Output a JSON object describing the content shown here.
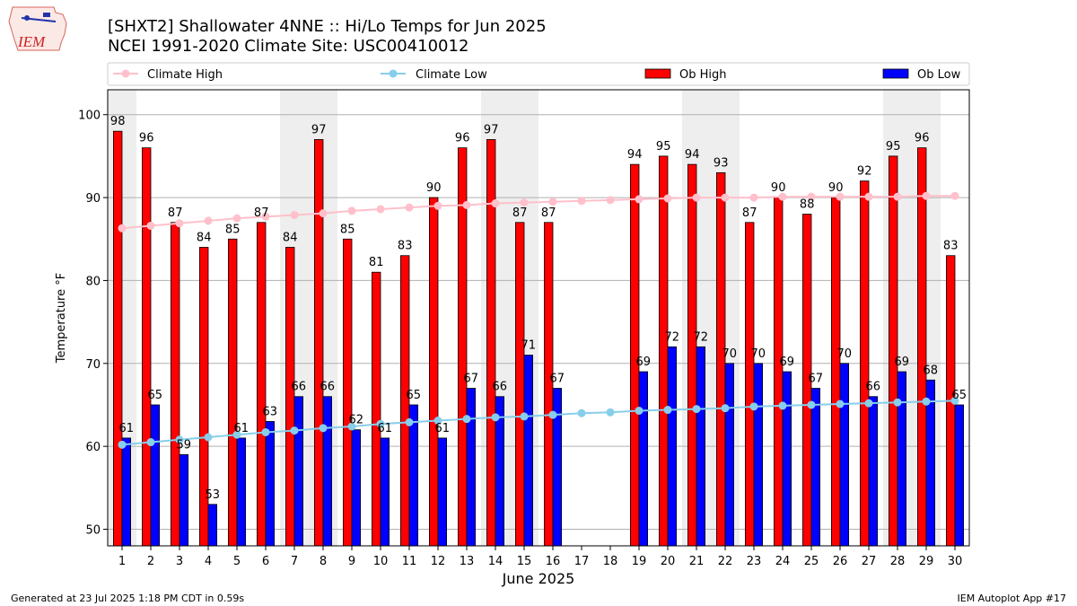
{
  "logo": {
    "text": "IEM"
  },
  "header": {
    "title_line1": "[SHXT2] Shallowater 4NNE :: Hi/Lo Temps for Jun 2025",
    "title_line2": "NCEI 1991-2020 Climate Site: USC00410012"
  },
  "footer": {
    "left": "Generated at 23 Jul 2025 1:18 PM CDT in 0.59s",
    "right": "IEM Autoplot App #17"
  },
  "colors": {
    "ob_high": "#ff0000",
    "ob_low": "#0000ff",
    "climate_high": "#ffc0cb",
    "climate_low": "#87ceeb",
    "weekend_shade": "#eeeeee",
    "grid": "#b0b0b0"
  },
  "chart_data": {
    "type": "bar",
    "title": "[SHXT2] Shallowater 4NNE :: Hi/Lo Temps for Jun 2025",
    "subtitle": "NCEI 1991-2020 Climate Site: USC00410012",
    "xlabel": "June 2025",
    "ylabel": "Temperature °F",
    "ylim": [
      48,
      103
    ],
    "yticks": [
      50,
      60,
      70,
      80,
      90,
      100
    ],
    "grid": true,
    "legend_placement": "top",
    "categories": [
      "1",
      "2",
      "3",
      "4",
      "5",
      "6",
      "7",
      "8",
      "9",
      "10",
      "11",
      "12",
      "13",
      "14",
      "15",
      "16",
      "17",
      "18",
      "19",
      "20",
      "21",
      "22",
      "23",
      "24",
      "25",
      "26",
      "27",
      "28",
      "29",
      "30"
    ],
    "shaded_days": [
      1,
      7,
      8,
      14,
      15,
      21,
      22,
      28,
      29
    ],
    "series": [
      {
        "name": "Ob High",
        "kind": "bar",
        "values": [
          98,
          96,
          87,
          84,
          85,
          87,
          84,
          97,
          85,
          81,
          83,
          90,
          96,
          97,
          87,
          87,
          null,
          null,
          94,
          95,
          94,
          93,
          87,
          90,
          88,
          90,
          92,
          95,
          96,
          83
        ]
      },
      {
        "name": "Ob Low",
        "kind": "bar",
        "values": [
          61,
          65,
          59,
          53,
          61,
          63,
          66,
          66,
          62,
          61,
          65,
          61,
          67,
          66,
          71,
          67,
          null,
          null,
          69,
          72,
          72,
          70,
          70,
          69,
          67,
          70,
          66,
          69,
          68,
          65
        ]
      },
      {
        "name": "Climate High",
        "kind": "line",
        "values": [
          86.3,
          86.6,
          86.9,
          87.2,
          87.5,
          87.7,
          87.9,
          88.1,
          88.4,
          88.6,
          88.8,
          89.0,
          89.1,
          89.3,
          89.4,
          89.5,
          89.6,
          89.7,
          89.8,
          89.9,
          90.0,
          90.0,
          90.0,
          90.1,
          90.1,
          90.1,
          90.1,
          90.1,
          90.2,
          90.2
        ]
      },
      {
        "name": "Climate Low",
        "kind": "line",
        "values": [
          60.2,
          60.5,
          60.8,
          61.1,
          61.4,
          61.7,
          61.9,
          62.2,
          62.4,
          62.7,
          62.9,
          63.1,
          63.3,
          63.5,
          63.6,
          63.8,
          64.0,
          64.1,
          64.3,
          64.4,
          64.5,
          64.6,
          64.8,
          64.9,
          65.0,
          65.1,
          65.2,
          65.3,
          65.4,
          65.5
        ]
      }
    ]
  }
}
